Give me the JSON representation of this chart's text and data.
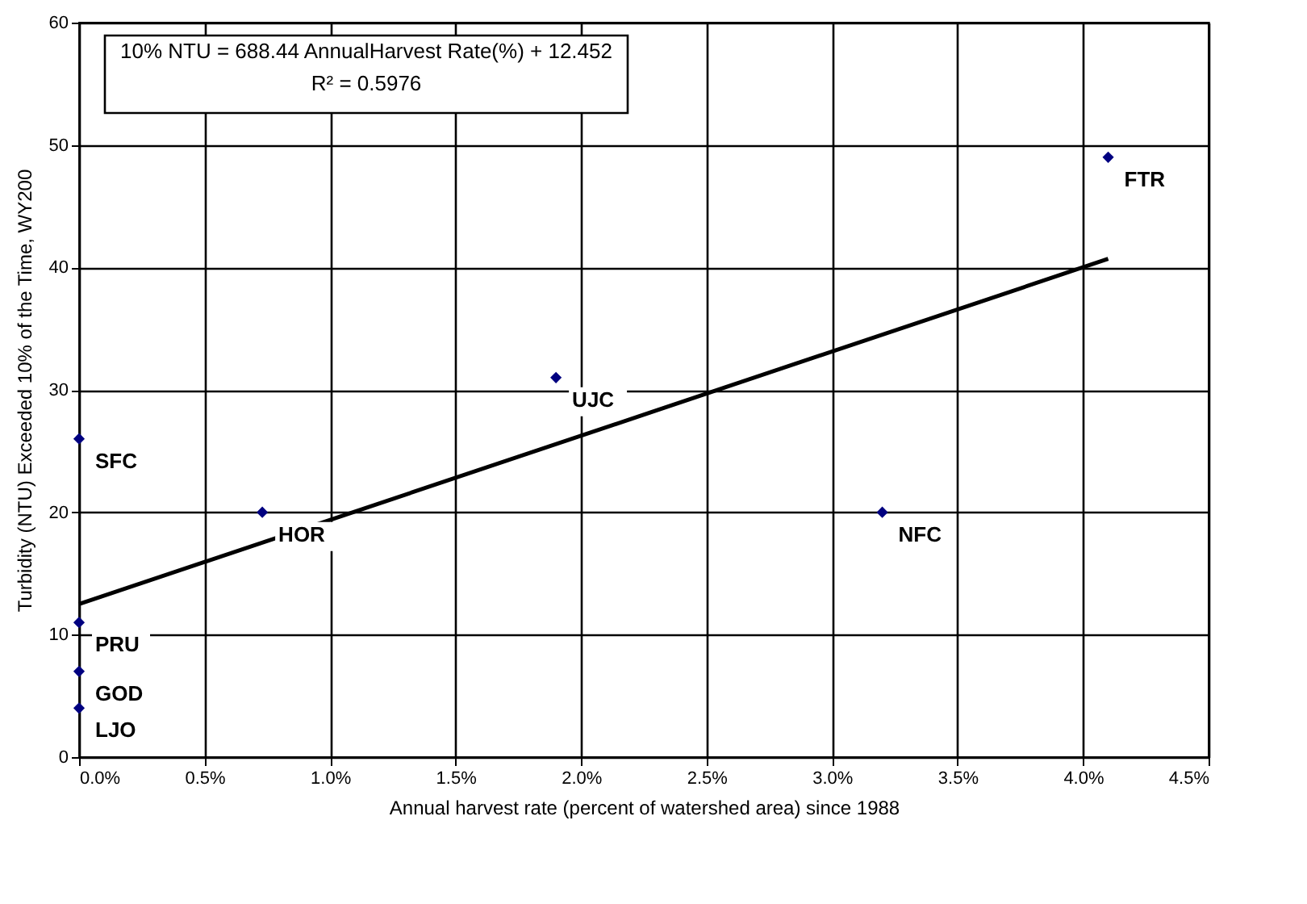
{
  "chart_data": {
    "type": "scatter",
    "xlabel": "Annual harvest rate (percent of watershed area) since 1988",
    "ylabel": "Turbidity (NTU) Exceeded 10% of the Time, WY200",
    "xlim": [
      0,
      4.5
    ],
    "xticks": [
      {
        "value": 0,
        "label": "0.0%"
      },
      {
        "value": 0.5,
        "label": "0.5%"
      },
      {
        "value": 1,
        "label": "1.0%"
      },
      {
        "value": 1.5,
        "label": "1.5%"
      },
      {
        "value": 2,
        "label": "2.0%"
      },
      {
        "value": 2.5,
        "label": "2.5%"
      },
      {
        "value": 3,
        "label": "3.0%"
      },
      {
        "value": 3.5,
        "label": "3.5%"
      },
      {
        "value": 4,
        "label": "4.0%"
      },
      {
        "value": 4.5,
        "label": "4.5%"
      }
    ],
    "ylim": [
      0,
      60
    ],
    "yticks": [
      0,
      10,
      20,
      30,
      40,
      50,
      60
    ],
    "grid": true,
    "series": [
      {
        "marker": "diamond",
        "color": "#000080",
        "x": [
          0,
          0.73,
          1.9,
          3.2,
          4.1,
          0,
          0,
          0
        ],
        "values": [
          26,
          20,
          31,
          20,
          49,
          11,
          7,
          4
        ]
      },
      {
        "type": "line",
        "color": "#000000",
        "x": [
          0,
          4.1
        ],
        "values": [
          12.5,
          40.7
        ]
      }
    ],
    "annotations": [
      "10% NTU = 688.44 AnnualHarvest Rate(%) + 12.452",
      "R² = 0.5976",
      {
        "text": "SFC",
        "x": 0,
        "y": 26
      },
      {
        "text": "HOR",
        "x": 0.73,
        "y": 20
      },
      {
        "text": "UJC",
        "x": 1.9,
        "y": 31
      },
      {
        "text": "NFC",
        "x": 3.2,
        "y": 20
      },
      {
        "text": "FTR",
        "x": 4.1,
        "y": 49
      },
      {
        "text": "PRU",
        "x": 0,
        "y": 11
      },
      {
        "text": "GOD",
        "x": 0,
        "y": 7
      },
      {
        "text": "LJO",
        "x": 0,
        "y": 4
      }
    ]
  }
}
